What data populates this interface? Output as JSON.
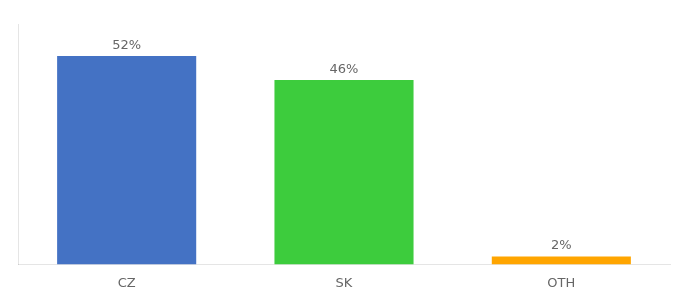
{
  "chart_data": {
    "type": "bar",
    "categories": [
      "CZ",
      "SK",
      "OTH"
    ],
    "values": [
      52,
      46,
      2
    ],
    "value_labels": [
      "52%",
      "46%",
      "2%"
    ],
    "data_labels": true,
    "colors": [
      "#4472c4",
      "#3dcc3d",
      "#FFA500"
    ],
    "ylim": [
      0,
      60
    ],
    "grid": false,
    "tick_labels": "x"
  }
}
